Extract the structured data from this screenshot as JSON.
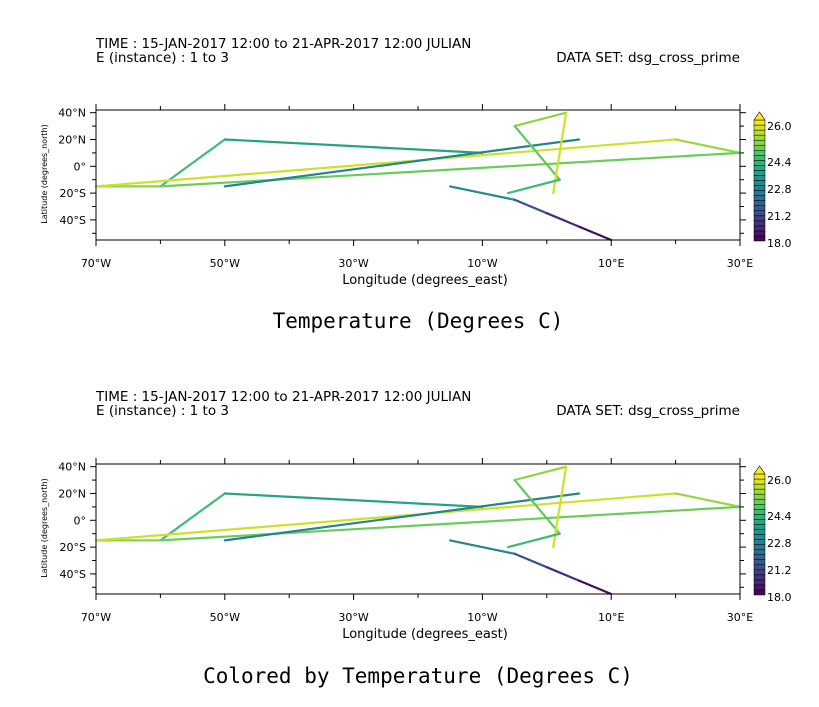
{
  "panels": [
    {
      "header_time": "TIME : 15-JAN-2017 12:00 to 21-APR-2017 12:00 JULIAN",
      "header_instance": "E (instance) : 1 to 3",
      "dataset": "DATA SET: dsg_cross_prime",
      "colorbar_labels": [
        "26.0",
        "24.4",
        "22.8",
        "21.2",
        "18.0"
      ]
    },
    {
      "header_time": "TIME : 15-JAN-2017 12:00 to 21-APR-2017 12:00 JULIAN",
      "header_instance": "E (instance) : 1 to 3",
      "dataset": "DATA SET: dsg_cross_prime",
      "colorbar_labels": [
        "26.0",
        "24.4",
        "22.8",
        "21.2",
        "18.0"
      ]
    }
  ],
  "chart_data": [
    {
      "type": "line",
      "title": "Temperature (Degrees C)",
      "xlabel": "Longitude (degrees_east)",
      "ylabel": "Latitude (degrees_north)",
      "xlim": [
        -70,
        30
      ],
      "ylim": [
        -55,
        42
      ],
      "xticks": [
        -70,
        -50,
        -30,
        -10,
        10,
        30
      ],
      "xtick_labels": [
        "70°W",
        "50°W",
        "30°W",
        "10°W",
        "10°E",
        "30°E"
      ],
      "yticks": [
        40,
        20,
        0,
        -20,
        -40
      ],
      "ytick_labels": [
        "40°N",
        "20°N",
        "0°",
        "20°S",
        "40°S"
      ],
      "colorbar": {
        "min": 18.0,
        "max": 27.6,
        "levels": 24
      },
      "series": [
        {
          "x": [
            -50,
            -60
          ],
          "y": [
            20,
            -15
          ],
          "t": 24.6
        },
        {
          "x": [
            -50,
            -10
          ],
          "y": [
            20,
            10
          ],
          "t": 23.6
        },
        {
          "x": [
            -60,
            -70
          ],
          "y": [
            -15,
            -15
          ],
          "t": 25.9
        },
        {
          "x": [
            -70,
            20
          ],
          "y": [
            -15,
            20
          ],
          "t": 26.9
        },
        {
          "x": [
            20,
            30
          ],
          "y": [
            20,
            10
          ],
          "t": 26.1
        },
        {
          "x": [
            30,
            -60
          ],
          "y": [
            10,
            -15
          ],
          "t": 25.4
        },
        {
          "x": [
            -50,
            5
          ],
          "y": [
            -15,
            20
          ],
          "t": 22.4
        },
        {
          "x": [
            -5,
            3
          ],
          "y": [
            30,
            40
          ],
          "t": 25.9
        },
        {
          "x": [
            -5,
            2
          ],
          "y": [
            30,
            -10
          ],
          "t": 25.2
        },
        {
          "x": [
            3,
            1
          ],
          "y": [
            40,
            -20
          ],
          "t": 26.9
        },
        {
          "x": [
            2,
            -6
          ],
          "y": [
            -10,
            -20
          ],
          "t": 24.5
        },
        {
          "x": [
            -15,
            -5,
            0,
            5,
            10
          ],
          "y": [
            -15,
            -25,
            -35,
            -45,
            -55
          ],
          "t": [
            22.5,
            20.5,
            19.2,
            18.3
          ]
        }
      ]
    },
    {
      "type": "line",
      "title": "Colored by Temperature (Degrees C)",
      "xlabel": "Longitude (degrees_east)",
      "ylabel": "Latitude (degrees_north)",
      "xlim": [
        -70,
        30
      ],
      "ylim": [
        -55,
        42
      ],
      "xticks": [
        -70,
        -50,
        -30,
        -10,
        10,
        30
      ],
      "xtick_labels": [
        "70°W",
        "50°W",
        "30°W",
        "10°W",
        "10°E",
        "30°E"
      ],
      "yticks": [
        40,
        20,
        0,
        -20,
        -40
      ],
      "ytick_labels": [
        "40°N",
        "20°N",
        "0°",
        "20°S",
        "40°S"
      ],
      "colorbar": {
        "min": 18.0,
        "max": 27.6,
        "levels": 24
      },
      "series": [
        {
          "x": [
            -50,
            -60
          ],
          "y": [
            20,
            -15
          ],
          "t": 24.6
        },
        {
          "x": [
            -50,
            -10
          ],
          "y": [
            20,
            10
          ],
          "t": 23.6
        },
        {
          "x": [
            -60,
            -70
          ],
          "y": [
            -15,
            -15
          ],
          "t": 25.9
        },
        {
          "x": [
            -70,
            20
          ],
          "y": [
            -15,
            20
          ],
          "t": 26.9
        },
        {
          "x": [
            20,
            30
          ],
          "y": [
            20,
            10
          ],
          "t": 26.1
        },
        {
          "x": [
            30,
            -60
          ],
          "y": [
            10,
            -15
          ],
          "t": 25.4
        },
        {
          "x": [
            -50,
            5
          ],
          "y": [
            -15,
            20
          ],
          "t": 22.4
        },
        {
          "x": [
            -5,
            3
          ],
          "y": [
            30,
            40
          ],
          "t": 25.9
        },
        {
          "x": [
            -5,
            2
          ],
          "y": [
            30,
            -10
          ],
          "t": 25.2
        },
        {
          "x": [
            3,
            1
          ],
          "y": [
            40,
            -20
          ],
          "t": 26.9
        },
        {
          "x": [
            2,
            -6
          ],
          "y": [
            -10,
            -20
          ],
          "t": 24.5
        },
        {
          "x": [
            -15,
            -5,
            0,
            5,
            10
          ],
          "y": [
            -15,
            -25,
            -35,
            -45,
            -55
          ],
          "t": [
            22.5,
            20.5,
            19.2,
            18.3
          ]
        }
      ]
    }
  ]
}
